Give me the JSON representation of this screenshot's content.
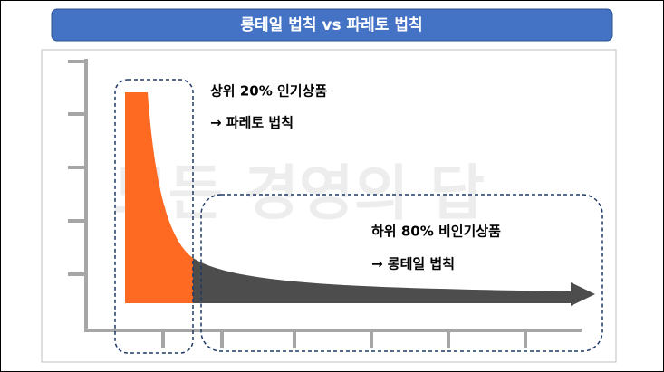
{
  "header": {
    "title": "롱테일 법칙 vs 파레토 법칙"
  },
  "watermark": "모든 경영의 답",
  "labels": [
    {
      "line1": "상위 20% 인기상품",
      "line2": "→ 파레토 법칙"
    },
    {
      "line1": "하위 80% 비인기상품",
      "line2": "→ 롱테일 법칙"
    }
  ]
}
